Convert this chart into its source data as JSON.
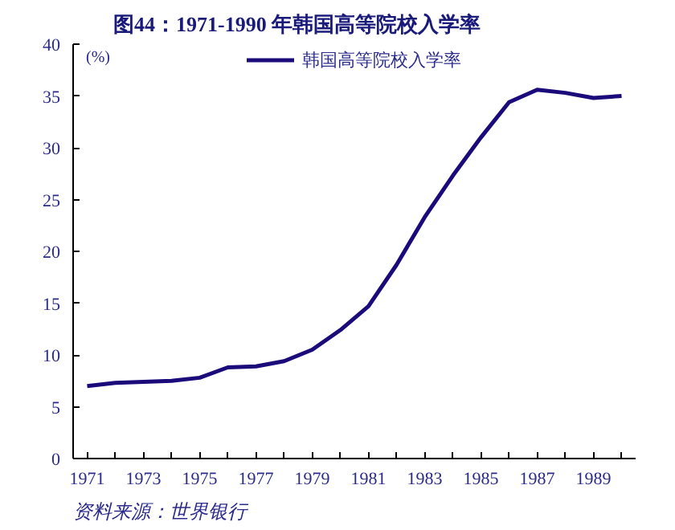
{
  "chart_data": {
    "type": "line",
    "title": "图44：1971-1990 年韩国高等院校入学率",
    "ylabel": "(%)",
    "annotations": [
      "资料来源：世界银行"
    ],
    "x": [
      1971,
      1972,
      1973,
      1974,
      1975,
      1976,
      1977,
      1978,
      1979,
      1980,
      1981,
      1982,
      1983,
      1984,
      1985,
      1986,
      1987,
      1988,
      1989,
      1990
    ],
    "series": [
      {
        "name": "韩国高等院校入学率",
        "color": "#1a0a7a",
        "values": [
          7.0,
          7.3,
          7.4,
          7.5,
          7.8,
          8.8,
          8.9,
          9.4,
          10.5,
          12.4,
          14.7,
          18.7,
          23.3,
          27.3,
          31.0,
          34.4,
          35.6,
          35.3,
          34.8,
          35.0
        ]
      }
    ],
    "xlim": [
      1970.5,
      1990.5
    ],
    "xticks": [
      1971,
      {
        "value": 1972,
        "label": null
      },
      1973,
      {
        "value": 1974,
        "label": null
      },
      1975,
      {
        "value": 1976,
        "label": null
      },
      1977,
      {
        "value": 1978,
        "label": null
      },
      1979,
      {
        "value": 1980,
        "label": null
      },
      1981,
      {
        "value": 1982,
        "label": null
      },
      1983,
      {
        "value": 1984,
        "label": null
      },
      1985,
      {
        "value": 1986,
        "label": null
      },
      1987,
      {
        "value": 1988,
        "label": null
      },
      1989,
      {
        "value": 1990,
        "label": null
      }
    ],
    "ylim": [
      0,
      40
    ],
    "yticks": [
      0,
      5,
      10,
      15,
      20,
      25,
      30,
      35,
      40
    ],
    "grid": false,
    "legend": "top",
    "marker": "none",
    "line_style": "solid"
  }
}
